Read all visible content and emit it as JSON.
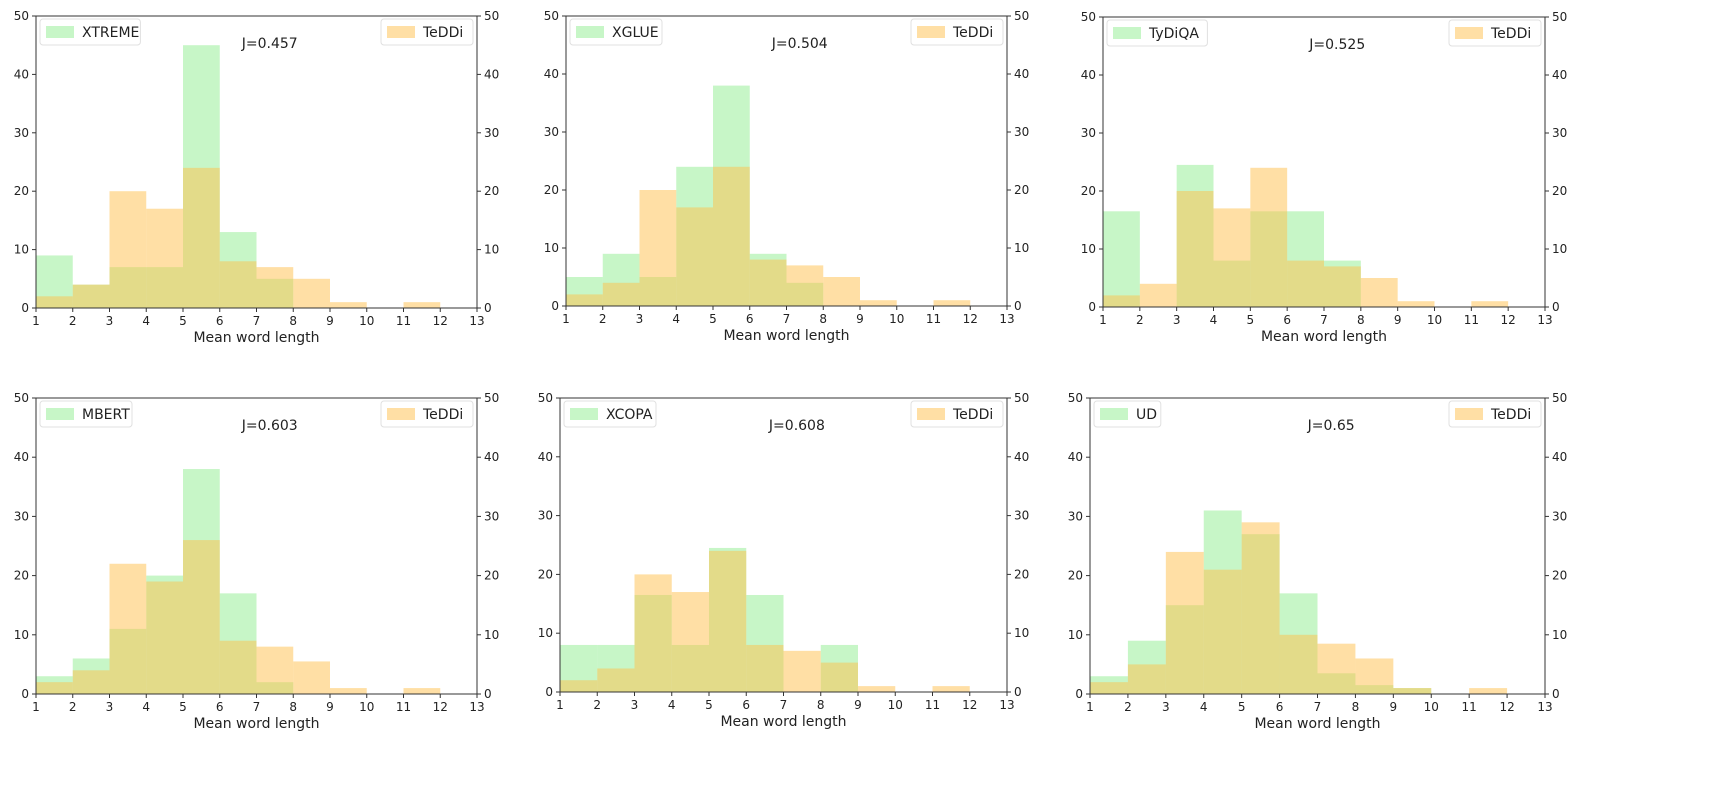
{
  "chart_data": [
    {
      "type": "bar",
      "title": "J=0.457",
      "xlabel": "Mean word length",
      "xlim": [
        1,
        13
      ],
      "ylim": [
        0,
        50
      ],
      "yticks": [
        0,
        10,
        20,
        30,
        40,
        50
      ],
      "xticks": [
        1,
        2,
        3,
        4,
        5,
        6,
        7,
        8,
        9,
        10,
        11,
        12,
        13
      ],
      "bin_edges": [
        1,
        2,
        3,
        4,
        5,
        6,
        7,
        8,
        9,
        10,
        11,
        12,
        13
      ],
      "series": [
        {
          "name": "XTREME",
          "color": "#90ee90",
          "values": [
            9,
            4,
            7,
            7,
            45,
            13,
            5,
            0,
            0,
            0,
            0,
            0
          ]
        },
        {
          "name": "TeDDi",
          "color": "#ffc04c",
          "values": [
            2,
            4,
            20,
            17,
            24,
            8,
            7,
            5,
            1,
            0,
            1,
            0
          ]
        }
      ]
    },
    {
      "type": "bar",
      "title": "J=0.504",
      "xlabel": "Mean word length",
      "xlim": [
        1,
        13
      ],
      "ylim": [
        0,
        50
      ],
      "yticks": [
        0,
        10,
        20,
        30,
        40,
        50
      ],
      "xticks": [
        1,
        2,
        3,
        4,
        5,
        6,
        7,
        8,
        9,
        10,
        11,
        12,
        13
      ],
      "bin_edges": [
        1,
        2,
        3,
        4,
        5,
        6,
        7,
        8,
        9,
        10,
        11,
        12,
        13
      ],
      "series": [
        {
          "name": "XGLUE",
          "color": "#90ee90",
          "values": [
            5,
            9,
            5,
            24,
            38,
            9,
            4,
            0,
            0,
            0,
            0,
            0
          ]
        },
        {
          "name": "TeDDi",
          "color": "#ffc04c",
          "values": [
            2,
            4,
            20,
            17,
            24,
            8,
            7,
            5,
            1,
            0,
            1,
            0
          ]
        }
      ]
    },
    {
      "type": "bar",
      "title": "J=0.525",
      "xlabel": "Mean word length",
      "xlim": [
        1,
        13
      ],
      "ylim": [
        0,
        50
      ],
      "yticks": [
        0,
        10,
        20,
        30,
        40,
        50
      ],
      "xticks": [
        1,
        2,
        3,
        4,
        5,
        6,
        7,
        8,
        9,
        10,
        11,
        12,
        13
      ],
      "bin_edges": [
        1,
        2,
        3,
        4,
        5,
        6,
        7,
        8,
        9,
        10,
        11,
        12,
        13
      ],
      "series": [
        {
          "name": "TyDiQA",
          "color": "#90ee90",
          "values": [
            16.5,
            0,
            24.5,
            8,
            16.5,
            16.5,
            8,
            0,
            0,
            0,
            0,
            0
          ]
        },
        {
          "name": "TeDDi",
          "color": "#ffc04c",
          "values": [
            2,
            4,
            20,
            17,
            24,
            8,
            7,
            5,
            1,
            0,
            1,
            0
          ]
        }
      ]
    },
    {
      "type": "bar",
      "title": "J=0.603",
      "xlabel": "Mean word length",
      "xlim": [
        1,
        13
      ],
      "ylim": [
        0,
        50
      ],
      "yticks": [
        0,
        10,
        20,
        30,
        40,
        50
      ],
      "xticks": [
        1,
        2,
        3,
        4,
        5,
        6,
        7,
        8,
        9,
        10,
        11,
        12,
        13
      ],
      "bin_edges": [
        1,
        2,
        3,
        4,
        5,
        6,
        7,
        8,
        9,
        10,
        11,
        12,
        13
      ],
      "series": [
        {
          "name": "MBERT",
          "color": "#90ee90",
          "values": [
            3,
            6,
            11,
            20,
            38,
            17,
            2,
            0,
            0,
            0,
            0,
            0
          ]
        },
        {
          "name": "TeDDi",
          "color": "#ffc04c",
          "values": [
            2,
            4,
            22,
            19,
            26,
            9,
            8,
            5.5,
            1,
            0,
            1,
            0
          ]
        }
      ]
    },
    {
      "type": "bar",
      "title": "J=0.608",
      "xlabel": "Mean word length",
      "xlim": [
        1,
        13
      ],
      "ylim": [
        0,
        50
      ],
      "yticks": [
        0,
        10,
        20,
        30,
        40,
        50
      ],
      "xticks": [
        1,
        2,
        3,
        4,
        5,
        6,
        7,
        8,
        9,
        10,
        11,
        12,
        13
      ],
      "bin_edges": [
        1,
        2,
        3,
        4,
        5,
        6,
        7,
        8,
        9,
        10,
        11,
        12,
        13
      ],
      "series": [
        {
          "name": "XCOPA",
          "color": "#90ee90",
          "values": [
            8,
            8,
            16.5,
            8,
            24.5,
            16.5,
            0,
            8,
            0,
            0,
            0,
            0
          ]
        },
        {
          "name": "TeDDi",
          "color": "#ffc04c",
          "values": [
            2,
            4,
            20,
            17,
            24,
            8,
            7,
            5,
            1,
            0,
            1,
            0
          ]
        }
      ]
    },
    {
      "type": "bar",
      "title": "J=0.65",
      "xlabel": "Mean word length",
      "xlim": [
        1,
        13
      ],
      "ylim": [
        0,
        50
      ],
      "yticks": [
        0,
        10,
        20,
        30,
        40,
        50
      ],
      "xticks": [
        1,
        2,
        3,
        4,
        5,
        6,
        7,
        8,
        9,
        10,
        11,
        12,
        13
      ],
      "bin_edges": [
        1,
        2,
        3,
        4,
        5,
        6,
        7,
        8,
        9,
        10,
        11,
        12,
        13
      ],
      "series": [
        {
          "name": "UD",
          "color": "#90ee90",
          "values": [
            3,
            9,
            15,
            31,
            27,
            17,
            3.5,
            1.5,
            1,
            0,
            0,
            0
          ]
        },
        {
          "name": "TeDDi",
          "color": "#ffc04c",
          "values": [
            2,
            5,
            24,
            21,
            29,
            10,
            8.5,
            6,
            1,
            0,
            1,
            0
          ]
        }
      ]
    }
  ]
}
